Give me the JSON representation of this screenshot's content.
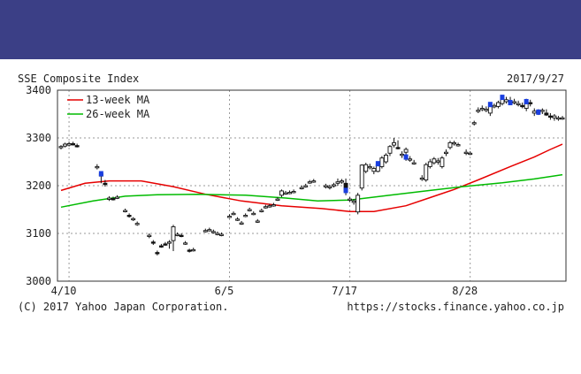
{
  "header": {
    "banner_color": "#3b3f86"
  },
  "chart_data": {
    "type": "candlestick",
    "title": "SSE Composite Index",
    "date": "2017/9/27",
    "ylim": [
      3000,
      3400
    ],
    "yticks": [
      3000,
      3100,
      3200,
      3300,
      3400
    ],
    "ytick_labels": [
      "3000",
      "3100",
      "3200",
      "3300",
      "3400"
    ],
    "xticks": [
      {
        "label": "4/10",
        "index": 2
      },
      {
        "label": "6/5",
        "index": 42
      },
      {
        "label": "7/17",
        "index": 72
      },
      {
        "label": "8/28",
        "index": 102
      }
    ],
    "x_count": 126,
    "legend": [
      {
        "name": "13-week MA",
        "color": "#e60000"
      },
      {
        "name": "26-week MA",
        "color": "#00bb00"
      }
    ],
    "candles": [
      [
        0,
        3280,
        3285,
        3276,
        3282
      ],
      [
        1,
        3283,
        3290,
        3280,
        3287
      ],
      [
        2,
        3285,
        3292,
        3282,
        3288
      ],
      [
        3,
        3288,
        3292,
        3284,
        3286
      ],
      [
        4,
        3284,
        3288,
        3280,
        3283
      ],
      [
        9,
        3238,
        3245,
        3234,
        3240
      ],
      [
        10,
        3220,
        3230,
        3205,
        3225
      ],
      [
        11,
        3205,
        3212,
        3198,
        3203
      ],
      [
        12,
        3172,
        3178,
        3168,
        3174
      ],
      [
        13,
        3173,
        3177,
        3169,
        3172
      ],
      [
        14,
        3176,
        3180,
        3172,
        3176
      ],
      [
        16,
        3148,
        3152,
        3144,
        3148
      ],
      [
        17,
        3138,
        3142,
        3133,
        3137
      ],
      [
        18,
        3130,
        3134,
        3126,
        3131
      ],
      [
        19,
        3120,
        3125,
        3116,
        3121
      ],
      [
        22,
        3095,
        3100,
        3090,
        3096
      ],
      [
        23,
        3082,
        3086,
        3076,
        3080
      ],
      [
        24,
        3060,
        3064,
        3054,
        3058
      ],
      [
        25,
        3074,
        3078,
        3070,
        3073
      ],
      [
        26,
        3078,
        3082,
        3074,
        3077
      ],
      [
        27,
        3082,
        3086,
        3068,
        3082
      ],
      [
        28,
        3085,
        3118,
        3063,
        3114
      ],
      [
        29,
        3098,
        3102,
        3094,
        3098
      ],
      [
        30,
        3096,
        3100,
        3092,
        3095
      ],
      [
        31,
        3080,
        3084,
        3076,
        3080
      ],
      [
        32,
        3065,
        3068,
        3060,
        3063
      ],
      [
        33,
        3066,
        3070,
        3062,
        3066
      ],
      [
        36,
        3106,
        3110,
        3102,
        3106
      ],
      [
        37,
        3108,
        3112,
        3104,
        3108
      ],
      [
        38,
        3104,
        3108,
        3100,
        3104
      ],
      [
        39,
        3100,
        3104,
        3096,
        3100
      ],
      [
        40,
        3098,
        3102,
        3094,
        3098
      ],
      [
        42,
        3136,
        3140,
        3132,
        3136
      ],
      [
        43,
        3142,
        3146,
        3138,
        3142
      ],
      [
        44,
        3130,
        3134,
        3126,
        3130
      ],
      [
        45,
        3122,
        3126,
        3118,
        3122
      ],
      [
        46,
        3138,
        3142,
        3134,
        3138
      ],
      [
        47,
        3150,
        3154,
        3146,
        3150
      ],
      [
        48,
        3142,
        3146,
        3138,
        3142
      ],
      [
        49,
        3126,
        3130,
        3122,
        3126
      ],
      [
        50,
        3148,
        3152,
        3144,
        3148
      ],
      [
        51,
        3156,
        3160,
        3152,
        3156
      ],
      [
        52,
        3158,
        3162,
        3154,
        3158
      ],
      [
        53,
        3160,
        3164,
        3156,
        3160
      ],
      [
        54,
        3172,
        3176,
        3168,
        3172
      ],
      [
        55,
        3180,
        3192,
        3176,
        3189
      ],
      [
        56,
        3185,
        3189,
        3181,
        3185
      ],
      [
        57,
        3186,
        3190,
        3182,
        3186
      ],
      [
        58,
        3188,
        3192,
        3184,
        3188
      ],
      [
        60,
        3196,
        3200,
        3192,
        3196
      ],
      [
        61,
        3200,
        3204,
        3196,
        3200
      ],
      [
        62,
        3208,
        3212,
        3204,
        3208
      ],
      [
        63,
        3210,
        3214,
        3206,
        3210
      ],
      [
        66,
        3198,
        3204,
        3194,
        3200
      ],
      [
        67,
        3196,
        3202,
        3192,
        3198
      ],
      [
        68,
        3200,
        3206,
        3196,
        3202
      ],
      [
        69,
        3205,
        3215,
        3200,
        3208
      ],
      [
        70,
        3208,
        3214,
        3204,
        3210
      ],
      [
        71,
        3205,
        3215,
        3180,
        3188
      ],
      [
        72,
        3170,
        3176,
        3166,
        3172
      ],
      [
        73,
        3165,
        3172,
        3160,
        3168
      ],
      [
        74,
        3145,
        3185,
        3140,
        3180
      ],
      [
        75,
        3195,
        3245,
        3190,
        3243
      ],
      [
        76,
        3230,
        3248,
        3226,
        3244
      ],
      [
        77,
        3238,
        3246,
        3234,
        3240
      ],
      [
        78,
        3230,
        3240,
        3224,
        3236
      ],
      [
        79,
        3230,
        3248,
        3228,
        3244
      ],
      [
        80,
        3240,
        3262,
        3236,
        3258
      ],
      [
        81,
        3250,
        3268,
        3246,
        3264
      ],
      [
        82,
        3268,
        3285,
        3262,
        3282
      ],
      [
        83,
        3285,
        3300,
        3280,
        3290
      ],
      [
        84,
        3280,
        3295,
        3276,
        3278
      ],
      [
        85,
        3266,
        3272,
        3258,
        3266
      ],
      [
        86,
        3270,
        3280,
        3252,
        3276
      ],
      [
        87,
        3256,
        3262,
        3250,
        3256
      ],
      [
        88,
        3248,
        3254,
        3244,
        3248
      ],
      [
        90,
        3216,
        3222,
        3210,
        3216
      ],
      [
        91,
        3212,
        3248,
        3208,
        3244
      ],
      [
        92,
        3240,
        3256,
        3236,
        3250
      ],
      [
        93,
        3248,
        3260,
        3244,
        3256
      ],
      [
        94,
        3250,
        3258,
        3244,
        3252
      ],
      [
        95,
        3240,
        3262,
        3236,
        3258
      ],
      [
        96,
        3268,
        3276,
        3262,
        3270
      ],
      [
        97,
        3280,
        3294,
        3276,
        3290
      ],
      [
        98,
        3288,
        3294,
        3284,
        3290
      ],
      [
        99,
        3286,
        3290,
        3282,
        3286
      ],
      [
        101,
        3270,
        3276,
        3264,
        3270
      ],
      [
        102,
        3268,
        3272,
        3264,
        3268
      ],
      [
        103,
        3330,
        3336,
        3326,
        3332
      ],
      [
        104,
        3358,
        3364,
        3352,
        3358
      ],
      [
        105,
        3362,
        3368,
        3356,
        3362
      ],
      [
        106,
        3360,
        3366,
        3354,
        3360
      ],
      [
        107,
        3352,
        3372,
        3346,
        3366
      ],
      [
        108,
        3365,
        3372,
        3362,
        3368
      ],
      [
        109,
        3366,
        3378,
        3362,
        3374
      ],
      [
        110,
        3372,
        3388,
        3368,
        3382
      ],
      [
        111,
        3376,
        3386,
        3372,
        3380
      ],
      [
        112,
        3378,
        3386,
        3372,
        3376
      ],
      [
        113,
        3376,
        3382,
        3370,
        3376
      ],
      [
        114,
        3372,
        3378,
        3366,
        3372
      ],
      [
        115,
        3368,
        3374,
        3362,
        3366
      ],
      [
        116,
        3362,
        3382,
        3356,
        3374
      ],
      [
        117,
        3374,
        3380,
        3366,
        3372
      ],
      [
        118,
        3352,
        3362,
        3346,
        3356
      ],
      [
        119,
        3354,
        3360,
        3348,
        3352
      ],
      [
        120,
        3356,
        3362,
        3350,
        3358
      ],
      [
        121,
        3352,
        3360,
        3346,
        3348
      ],
      [
        122,
        3346,
        3352,
        3338,
        3344
      ],
      [
        123,
        3342,
        3350,
        3336,
        3346
      ],
      [
        124,
        3340,
        3346,
        3336,
        3342
      ],
      [
        125,
        3342,
        3346,
        3338,
        3342
      ]
    ],
    "blue_markers": [
      {
        "index": 10,
        "value": 3225
      },
      {
        "index": 71,
        "value": 3190
      },
      {
        "index": 79,
        "value": 3246
      },
      {
        "index": 86,
        "value": 3260
      },
      {
        "index": 107,
        "value": 3370
      },
      {
        "index": 110,
        "value": 3385
      },
      {
        "index": 112,
        "value": 3374
      },
      {
        "index": 116,
        "value": 3376
      },
      {
        "index": 119,
        "value": 3354
      }
    ],
    "series": [
      {
        "name": "13-week MA",
        "color": "#e60000",
        "points": [
          [
            0,
            3190
          ],
          [
            6,
            3205
          ],
          [
            12,
            3210
          ],
          [
            20,
            3210
          ],
          [
            28,
            3198
          ],
          [
            36,
            3182
          ],
          [
            45,
            3168
          ],
          [
            55,
            3158
          ],
          [
            65,
            3152
          ],
          [
            72,
            3146
          ],
          [
            78,
            3146
          ],
          [
            86,
            3158
          ],
          [
            92,
            3175
          ],
          [
            98,
            3192
          ],
          [
            104,
            3212
          ],
          [
            112,
            3240
          ],
          [
            118,
            3260
          ],
          [
            122,
            3276
          ],
          [
            125,
            3287
          ]
        ]
      },
      {
        "name": "26-week MA",
        "color": "#00bb00",
        "points": [
          [
            0,
            3155
          ],
          [
            8,
            3168
          ],
          [
            16,
            3178
          ],
          [
            24,
            3181
          ],
          [
            34,
            3182
          ],
          [
            46,
            3180
          ],
          [
            56,
            3174
          ],
          [
            64,
            3168
          ],
          [
            72,
            3170
          ],
          [
            82,
            3180
          ],
          [
            92,
            3190
          ],
          [
            100,
            3198
          ],
          [
            110,
            3206
          ],
          [
            118,
            3214
          ],
          [
            125,
            3223
          ]
        ]
      }
    ]
  },
  "footer": {
    "copyright": "(C) 2017 Yahoo Japan Corporation.",
    "url": "https://stocks.finance.yahoo.co.jp"
  }
}
